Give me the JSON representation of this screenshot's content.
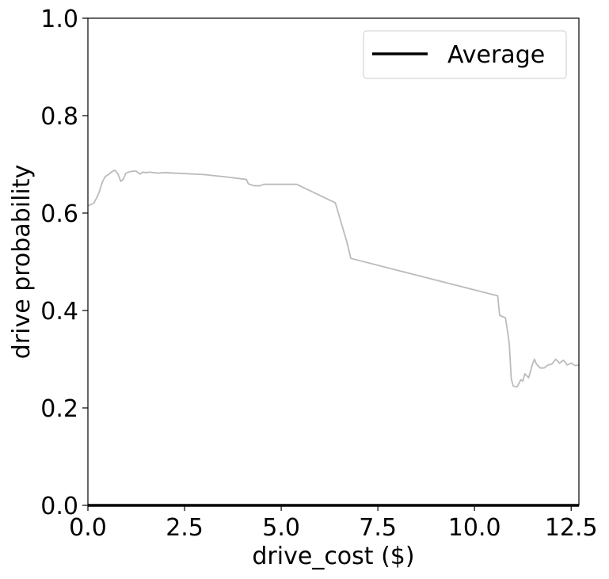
{
  "chart_data": {
    "type": "line",
    "xlabel": "drive_cost ($)",
    "ylabel": "drive probability",
    "xlim": [
      0,
      12.7
    ],
    "ylim": [
      0,
      1.0
    ],
    "x_ticks": [
      "0.0",
      "2.5",
      "5.0",
      "7.5",
      "10.0",
      "12.5"
    ],
    "x_tick_values": [
      0,
      2.5,
      5.0,
      7.5,
      10.0,
      12.5
    ],
    "y_ticks": [
      "0.0",
      "0.2",
      "0.4",
      "0.6",
      "0.8",
      "1.0"
    ],
    "y_tick_values": [
      0,
      0.2,
      0.4,
      0.6,
      0.8,
      1.0
    ],
    "grid": false,
    "legend": {
      "placement": "top-right",
      "entries": [
        "Average"
      ]
    },
    "series": [
      {
        "name": "Average",
        "color": "#000000",
        "x": [
          0,
          12.7
        ],
        "y": [
          0,
          0
        ]
      },
      {
        "color": "#bbbbbb",
        "x": [
          0.0,
          0.15,
          0.25,
          0.3,
          0.38,
          0.45,
          0.55,
          0.62,
          0.7,
          0.78,
          0.85,
          0.92,
          0.98,
          1.05,
          1.15,
          1.25,
          1.35,
          1.42,
          1.5,
          1.6,
          1.8,
          2.0,
          2.5,
          3.0,
          3.6,
          4.1,
          4.15,
          4.3,
          4.45,
          4.55,
          5.4,
          6.4,
          6.7,
          6.8,
          10.6,
          10.65,
          10.8,
          10.85,
          10.9,
          10.95,
          11.0,
          11.1,
          11.2,
          11.25,
          11.3,
          11.4,
          11.5,
          11.55,
          11.6,
          11.7,
          11.8,
          11.9,
          12.0,
          12.1,
          12.2,
          12.3,
          12.4,
          12.5,
          12.6,
          12.7
        ],
        "y": [
          0.615,
          0.62,
          0.635,
          0.645,
          0.665,
          0.675,
          0.68,
          0.685,
          0.688,
          0.68,
          0.665,
          0.67,
          0.682,
          0.684,
          0.686,
          0.686,
          0.68,
          0.684,
          0.683,
          0.684,
          0.682,
          0.683,
          0.681,
          0.679,
          0.674,
          0.669,
          0.66,
          0.656,
          0.656,
          0.659,
          0.659,
          0.621,
          0.54,
          0.507,
          0.43,
          0.39,
          0.385,
          0.36,
          0.33,
          0.26,
          0.245,
          0.243,
          0.258,
          0.255,
          0.27,
          0.262,
          0.29,
          0.3,
          0.29,
          0.282,
          0.282,
          0.288,
          0.29,
          0.3,
          0.292,
          0.298,
          0.288,
          0.292,
          0.287,
          0.288
        ]
      }
    ]
  }
}
